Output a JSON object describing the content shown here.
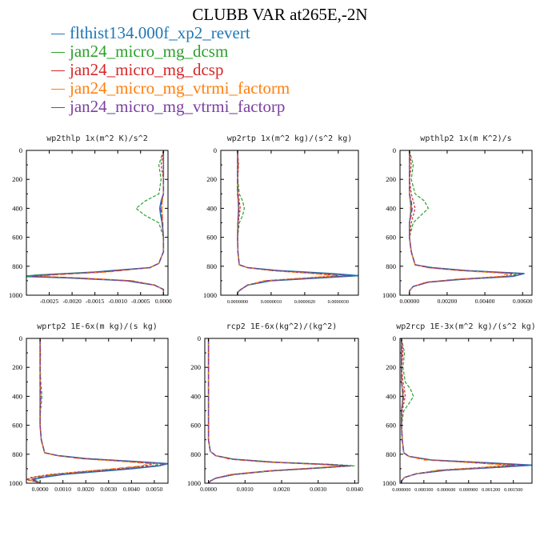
{
  "title": "CLUBB VAR at265E,-2N",
  "legend": [
    {
      "label": "flthist134.000f_xp2_revert",
      "color": "#1f77b4"
    },
    {
      "label": "jan24_micro_mg_dcsm",
      "color": "#2ca02c"
    },
    {
      "label": "jan24_micro_mg_dcsp",
      "color": "#d62728"
    },
    {
      "label": "jan24_micro_mg_vtrmi_factorm",
      "color": "#ff7f0e"
    },
    {
      "label": "jan24_micro_mg_vtrmi_factorp",
      "color": "#7b3fa0"
    }
  ],
  "chart_data": [
    {
      "type": "line",
      "title": "wp2thlp  1x(m^2 K)/s^2",
      "xlim": [
        -0.003,
        0.0001
      ],
      "ylim": [
        1000,
        0
      ],
      "xticks": [
        "-0.0025",
        "-0.0020",
        "-0.0015",
        "-0.0010",
        "-0.0005",
        "0.0000"
      ],
      "xtick_values": [
        -0.0025,
        -0.002,
        -0.0015,
        -0.001,
        -0.0005,
        0.0
      ],
      "yticks": [
        "0",
        "200",
        "400",
        "600",
        "800",
        "1000"
      ],
      "y": [
        0,
        100,
        200,
        300,
        350,
        400,
        450,
        500,
        600,
        700,
        780,
        810,
        840,
        860,
        870,
        880,
        900,
        930,
        960,
        1000
      ],
      "series": [
        {
          "values": [
            0,
            0,
            0,
            0,
            -5e-05,
            -8e-05,
            -6e-05,
            -3e-05,
            0,
            0,
            -0.0001,
            -0.0003,
            -0.0015,
            -0.0027,
            -0.0031,
            -0.0021,
            -0.0008,
            -0.0002,
            0,
            0
          ]
        },
        {
          "values": [
            0,
            -0.0001,
            -5e-05,
            -0.0001,
            -0.0004,
            -0.0006,
            -0.0004,
            -0.0001,
            0,
            0,
            -0.0001,
            -0.0003,
            -0.0014,
            -0.0028,
            -0.003,
            -0.002,
            -0.0007,
            -0.0002,
            0,
            0
          ]
        },
        {
          "values": [
            0,
            -5e-05,
            0,
            0,
            -3e-05,
            -4e-05,
            -3e-05,
            -2e-05,
            0,
            0,
            -0.0001,
            -0.0003,
            -0.0013,
            -0.0025,
            -0.0028,
            -0.0019,
            -0.0007,
            -0.0002,
            0,
            0
          ]
        },
        {
          "values": [
            0,
            0,
            0,
            0,
            -2e-05,
            -3e-05,
            -2e-05,
            -1e-05,
            0,
            0,
            -0.0001,
            -0.0003,
            -0.0012,
            -0.0024,
            -0.0027,
            -0.0018,
            -0.0007,
            -0.0002,
            0,
            0
          ]
        },
        {
          "values": [
            0,
            0,
            0,
            0,
            -4e-05,
            -6e-05,
            -4e-05,
            -2e-05,
            0,
            0,
            -0.0001,
            -0.0003,
            -0.0014,
            -0.0026,
            -0.0029,
            -0.002,
            -0.0008,
            -0.0002,
            0,
            0
          ]
        }
      ]
    },
    {
      "type": "line",
      "title": "wp2rtp  1x(m^2 kg)/(s^2 kg)",
      "xlim": [
        -5e-07,
        3.6e-06
      ],
      "ylim": [
        1000,
        0
      ],
      "xticks": [
        "0.0000000",
        "0.0000010",
        "0.0000020",
        "0.0000030"
      ],
      "xtick_values": [
        0.0,
        1e-06,
        2e-06,
        3e-06
      ],
      "yticks": [
        "0",
        "200",
        "400",
        "600",
        "800",
        "1000"
      ],
      "y": [
        0,
        100,
        200,
        300,
        350,
        400,
        450,
        500,
        600,
        700,
        790,
        810,
        830,
        850,
        865,
        880,
        900,
        930,
        960,
        980,
        1000
      ],
      "series": [
        {
          "values": [
            0,
            0,
            0,
            0,
            2e-08,
            3e-08,
            2e-08,
            1e-08,
            0,
            1e-08,
            5e-08,
            3e-07,
            1.2e-06,
            2.8e-06,
            3.6e-06,
            2.5e-06,
            1e-06,
            3e-07,
            1e-07,
            0,
            0
          ]
        },
        {
          "values": [
            0,
            2e-08,
            1e-08,
            5e-08,
            1.5e-07,
            2e-07,
            1.5e-07,
            5e-08,
            0,
            1e-08,
            5e-08,
            3e-07,
            1.1e-06,
            2.5e-06,
            3.3e-06,
            2.3e-06,
            9e-07,
            3e-07,
            1e-07,
            0,
            0
          ]
        },
        {
          "values": [
            0,
            3e-08,
            0,
            2e-08,
            5e-08,
            8e-08,
            5e-08,
            2e-08,
            0,
            1e-08,
            5e-08,
            3e-07,
            1e-06,
            2.3e-06,
            3e-06,
            2.1e-06,
            8e-07,
            3e-07,
            1e-07,
            0,
            0
          ]
        },
        {
          "values": [
            0,
            0,
            0,
            0,
            1e-08,
            2e-08,
            1e-08,
            0,
            0,
            1e-08,
            5e-08,
            3e-07,
            1e-06,
            2.2e-06,
            2.9e-06,
            2e-06,
            8e-07,
            3e-07,
            1e-07,
            0,
            0
          ]
        },
        {
          "values": [
            0,
            0,
            0,
            0,
            3e-08,
            4e-08,
            3e-08,
            1e-08,
            0,
            1e-08,
            5e-08,
            3e-07,
            1.1e-06,
            2.6e-06,
            3.4e-06,
            2.4e-06,
            9e-07,
            3e-07,
            1e-07,
            0,
            0
          ]
        }
      ]
    },
    {
      "type": "line",
      "title": "wpthlp2  1x(m K^2)/s",
      "xlim": [
        -0.0005,
        0.0065
      ],
      "ylim": [
        1000,
        0
      ],
      "xticks": [
        "0.00000",
        "0.00200",
        "0.00400",
        "0.00600"
      ],
      "xtick_values": [
        0.0,
        0.002,
        0.004,
        0.006
      ],
      "yticks": [
        "0",
        "200",
        "400",
        "600",
        "800",
        "1000"
      ],
      "y": [
        0,
        100,
        200,
        300,
        350,
        400,
        450,
        500,
        600,
        700,
        790,
        810,
        830,
        850,
        870,
        890,
        910,
        940,
        970,
        1000
      ],
      "series": [
        {
          "values": [
            0,
            0,
            0,
            0,
            5e-05,
            0.0001,
            5e-05,
            0,
            0,
            0.0001,
            0.0003,
            0.0012,
            0.003,
            0.0061,
            0.0055,
            0.0028,
            0.001,
            0.0002,
            0,
            0
          ]
        },
        {
          "values": [
            0,
            0.0002,
            0.0001,
            0.0003,
            0.0008,
            0.001,
            0.0006,
            0.0002,
            0,
            0.0001,
            0.0003,
            0.0011,
            0.0029,
            0.0058,
            0.0052,
            0.0026,
            0.0009,
            0.0002,
            0,
            0
          ]
        },
        {
          "values": [
            0,
            0.0001,
            0,
            0.0001,
            0.0002,
            0.0003,
            0.0002,
            0.0001,
            0,
            0.0001,
            0.0003,
            0.001,
            0.0027,
            0.0055,
            0.005,
            0.0025,
            0.0009,
            0.0002,
            0,
            0
          ]
        },
        {
          "values": [
            0,
            0,
            0,
            0,
            3e-05,
            5e-05,
            3e-05,
            0,
            0,
            0.0001,
            0.0003,
            0.001,
            0.0026,
            0.0052,
            0.0048,
            0.0024,
            0.0009,
            0.0002,
            0,
            0
          ]
        },
        {
          "values": [
            0,
            0,
            0,
            0,
            0.0001,
            0.00015,
            0.0001,
            0,
            0,
            0.0001,
            0.0003,
            0.0011,
            0.0029,
            0.006,
            0.0054,
            0.0027,
            0.001,
            0.0002,
            0,
            0
          ]
        }
      ]
    },
    {
      "type": "line",
      "title": "wprtp2  1E-6x(m kg)/(s kg)",
      "xlim": [
        -0.0006,
        0.0056
      ],
      "ylim": [
        1000,
        0
      ],
      "xticks": [
        "0.0000",
        "0.0010",
        "0.0020",
        "0.0030",
        "0.0040",
        "0.0050"
      ],
      "xtick_values": [
        0.0,
        0.001,
        0.002,
        0.003,
        0.004,
        0.005
      ],
      "yticks": [
        "0",
        "200",
        "400",
        "600",
        "800",
        "1000"
      ],
      "y": [
        0,
        100,
        200,
        300,
        350,
        400,
        450,
        500,
        600,
        700,
        790,
        810,
        830,
        850,
        865,
        880,
        900,
        920,
        940,
        960,
        975,
        990,
        1000
      ],
      "series": [
        {
          "values": [
            0,
            0,
            0,
            0,
            0,
            0,
            0,
            0,
            0,
            5e-05,
            0.0002,
            0.0008,
            0.002,
            0.0042,
            0.0056,
            0.0052,
            0.004,
            0.0025,
            0.001,
            0.0001,
            -0.0003,
            -0.0001,
            0
          ]
        },
        {
          "values": [
            0,
            2e-05,
            1e-05,
            3e-05,
            6e-05,
            8e-05,
            5e-05,
            2e-05,
            0,
            5e-05,
            0.0002,
            0.0008,
            0.0019,
            0.004,
            0.0053,
            0.0049,
            0.0036,
            0.002,
            0.0006,
            -0.0003,
            -0.0006,
            -0.0002,
            0
          ]
        },
        {
          "values": [
            0,
            1e-05,
            0,
            1e-05,
            2e-05,
            3e-05,
            2e-05,
            1e-05,
            0,
            5e-05,
            0.0002,
            0.0008,
            0.0018,
            0.0038,
            0.005,
            0.0046,
            0.0034,
            0.0018,
            0.0004,
            -0.0004,
            -0.0006,
            -0.0002,
            0
          ]
        },
        {
          "values": [
            0,
            0,
            0,
            0,
            0,
            1e-05,
            0,
            0,
            0,
            5e-05,
            0.0002,
            0.0007,
            0.0017,
            0.0036,
            0.0048,
            0.0044,
            0.0032,
            0.0018,
            0.0005,
            -0.0003,
            -0.0005,
            -0.0002,
            0
          ]
        },
        {
          "values": [
            0,
            0,
            0,
            0,
            1e-05,
            2e-05,
            1e-05,
            0,
            0,
            5e-05,
            0.0002,
            0.0008,
            0.0019,
            0.0041,
            0.0055,
            0.0051,
            0.0038,
            0.0022,
            0.0008,
            -0.0001,
            -0.0004,
            -0.0001,
            0
          ]
        }
      ]
    },
    {
      "type": "line",
      "title": "rcp2  1E-6x(kg^2)/(kg^2)",
      "xlim": [
        -0.0001,
        0.0041
      ],
      "ylim": [
        1000,
        0
      ],
      "xticks": [
        "0.0000",
        "0.0010",
        "0.0020",
        "0.0030",
        "0.0040"
      ],
      "xtick_values": [
        0.0,
        0.001,
        0.002,
        0.003,
        0.004
      ],
      "yticks": [
        "0",
        "200",
        "400",
        "600",
        "800",
        "1000"
      ],
      "y": [
        0,
        100,
        200,
        300,
        400,
        500,
        600,
        700,
        780,
        810,
        835,
        855,
        870,
        880,
        895,
        915,
        940,
        965,
        985,
        1000
      ],
      "series": [
        {
          "values": [
            0,
            0,
            0,
            0,
            0,
            0,
            0,
            0,
            5e-05,
            0.0002,
            0.0007,
            0.0018,
            0.0032,
            0.0038,
            0.003,
            0.0017,
            0.0007,
            0.0002,
            5e-05,
            0
          ]
        },
        {
          "values": [
            0,
            0,
            0,
            0,
            0,
            0,
            0,
            0,
            5e-05,
            0.0002,
            0.0007,
            0.0019,
            0.0034,
            0.004,
            0.0031,
            0.0018,
            0.0007,
            0.0002,
            5e-05,
            0
          ]
        },
        {
          "values": [
            0,
            0,
            0,
            0,
            0,
            0,
            0,
            0,
            5e-05,
            0.0002,
            0.0006,
            0.0017,
            0.0031,
            0.0037,
            0.0029,
            0.0016,
            0.0006,
            0.0002,
            5e-05,
            0
          ]
        },
        {
          "values": [
            0,
            0,
            0,
            0,
            0,
            0,
            0,
            0,
            5e-05,
            0.0002,
            0.0006,
            0.0016,
            0.003,
            0.0036,
            0.0028,
            0.0016,
            0.0006,
            0.0002,
            5e-05,
            0
          ]
        },
        {
          "values": [
            0,
            0,
            0,
            0,
            0,
            0,
            0,
            0,
            5e-05,
            0.0002,
            0.0007,
            0.0018,
            0.0033,
            0.0039,
            0.003,
            0.0017,
            0.0007,
            0.0002,
            5e-05,
            0
          ]
        }
      ]
    },
    {
      "type": "line",
      "title": "wp2rcp  1E-3x(m^2 kg)/(s^2 kg)",
      "xlim": [
        -2e-05,
        0.00175
      ],
      "ylim": [
        1000,
        0
      ],
      "xticks": [
        "0.000000",
        "0.000300",
        "0.000600",
        "0.000900",
        "0.001200",
        "0.001500"
      ],
      "xtick_values": [
        0.0,
        0.0003,
        0.0006,
        0.0009,
        0.0012,
        0.0015
      ],
      "yticks": [
        "0",
        "200",
        "400",
        "600",
        "800",
        "1000"
      ],
      "y": [
        0,
        100,
        200,
        300,
        350,
        400,
        450,
        500,
        600,
        700,
        790,
        815,
        840,
        860,
        875,
        890,
        910,
        935,
        960,
        985,
        1000
      ],
      "series": [
        {
          "values": [
            0,
            0,
            0,
            0,
            1e-05,
            2e-05,
            1e-05,
            0,
            0,
            1e-05,
            3e-05,
            0.0001,
            0.0004,
            0.0012,
            0.00175,
            0.0013,
            0.0006,
            0.0002,
            4e-05,
            0,
            0
          ]
        },
        {
          "values": [
            0,
            4e-05,
            2e-05,
            5e-05,
            0.00012,
            0.00016,
            0.0001,
            3e-05,
            0,
            1e-05,
            3e-05,
            0.0001,
            0.0004,
            0.0011,
            0.0016,
            0.0012,
            0.0005,
            0.0002,
            4e-05,
            0,
            0
          ]
        },
        {
          "values": [
            0,
            2e-05,
            0,
            2e-05,
            4e-05,
            5e-05,
            3e-05,
            1e-05,
            0,
            1e-05,
            3e-05,
            0.0001,
            0.0004,
            0.001,
            0.0015,
            0.0011,
            0.0005,
            0.0002,
            4e-05,
            0,
            0
          ]
        },
        {
          "values": [
            0,
            0,
            0,
            0,
            1e-05,
            1e-05,
            1e-05,
            0,
            0,
            1e-05,
            3e-05,
            0.0001,
            0.0003,
            0.001,
            0.0014,
            0.0011,
            0.0005,
            0.0002,
            4e-05,
            0,
            0
          ]
        },
        {
          "values": [
            0,
            0,
            0,
            0,
            2e-05,
            3e-05,
            2e-05,
            0,
            0,
            1e-05,
            3e-05,
            0.0001,
            0.0004,
            0.0012,
            0.0017,
            0.0013,
            0.0006,
            0.0002,
            4e-05,
            0,
            0
          ]
        }
      ]
    }
  ]
}
